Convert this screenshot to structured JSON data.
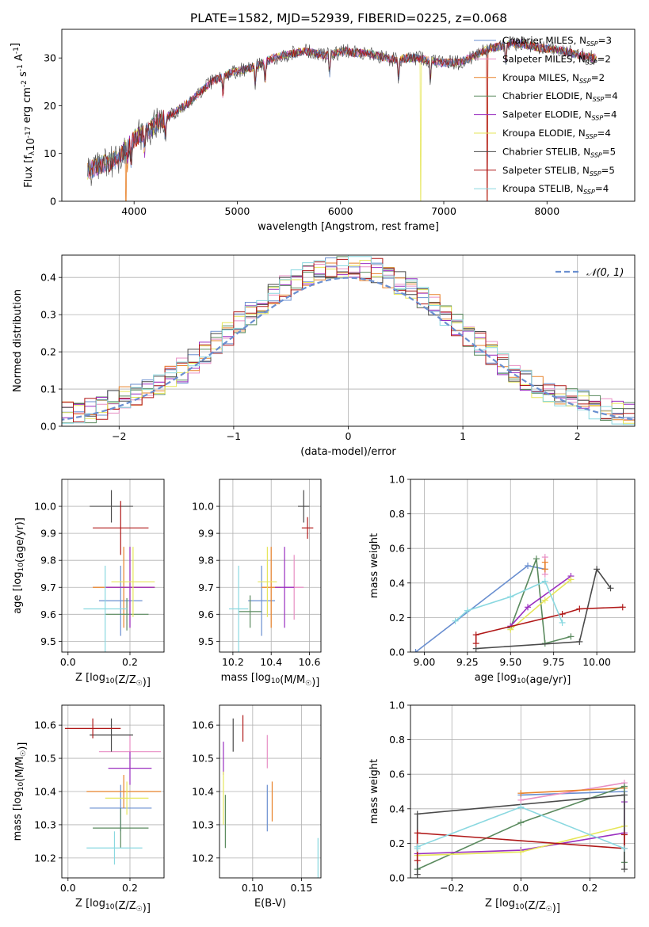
{
  "figure": {
    "title": "PLATE=1582, MJD=52939, FIBERID=0225, z=0.068"
  },
  "colors": {
    "chabrier_miles": "#6a8fd0",
    "salpeter_miles": "#e88fc4",
    "kroupa_miles": "#e8822a",
    "chabrier_elodie": "#5a8a5e",
    "salpeter_elodie": "#9a2fc0",
    "kroupa_elodie": "#e6e65a",
    "chabrier_stelib": "#4a4a4a",
    "salpeter_stelib": "#b01818",
    "kroupa_stelib": "#8ad8e0",
    "normal": "#6a8fd0",
    "grid": "#b0b0b0"
  },
  "chart_data": [
    {
      "id": "spectrum",
      "type": "line",
      "xlabel": "wavelength [Angstrom, rest frame]",
      "ylabel": "Flux [f_λ10^-17 erg cm^-2 s^-1 A^-1]",
      "xlim": [
        3300,
        8850
      ],
      "ylim": [
        0,
        36
      ],
      "xticks": [
        "4000",
        "5000",
        "6000",
        "7000",
        "8000"
      ],
      "xtick_values": [
        4000,
        5000,
        6000,
        7000,
        8000
      ],
      "yticks": [
        "0",
        "10",
        "20",
        "30"
      ],
      "ytick_values": [
        0,
        10,
        20,
        30
      ],
      "grid": false,
      "legend_position": "right",
      "legend": [
        {
          "label": "Chabrier MILES, N",
          "sub": "SSP",
          "n": "=3",
          "color_key": "chabrier_miles"
        },
        {
          "label": "Salpeter MILES, N",
          "sub": "SSP",
          "n": "=2",
          "color_key": "salpeter_miles"
        },
        {
          "label": "Kroupa MILES, N",
          "sub": "SSP",
          "n": "=2",
          "color_key": "kroupa_miles"
        },
        {
          "label": "Chabrier ELODIE, N",
          "sub": "SSP",
          "n": "=4",
          "color_key": "chabrier_elodie"
        },
        {
          "label": "Salpeter ELODIE, N",
          "sub": "SSP",
          "n": "=4",
          "color_key": "salpeter_elodie"
        },
        {
          "label": "Kroupa ELODIE, N",
          "sub": "SSP",
          "n": "=4",
          "color_key": "kroupa_elodie"
        },
        {
          "label": "Chabrier STELIB, N",
          "sub": "SSP",
          "n": "=5",
          "color_key": "chabrier_stelib"
        },
        {
          "label": "Salpeter STELIB, N",
          "sub": "SSP",
          "n": "=5",
          "color_key": "salpeter_stelib"
        },
        {
          "label": "Kroupa STELIB, N",
          "sub": "SSP",
          "n": "=4",
          "color_key": "kroupa_stelib"
        }
      ],
      "continuum": {
        "x": [
          3550,
          3650,
          3750,
          3850,
          3950,
          4050,
          4150,
          4250,
          4350,
          4450,
          4550,
          4650,
          4750,
          4850,
          4950,
          5050,
          5150,
          5250,
          5350,
          5450,
          5550,
          5650,
          5750,
          5850,
          5950,
          6050,
          6150,
          6250,
          6350,
          6450,
          6550,
          6650,
          6750,
          6850,
          6950,
          7050,
          7150,
          7250,
          7350,
          7450,
          7550,
          7650,
          7750,
          7850,
          7950,
          8050,
          8150,
          8250,
          8350,
          8450
        ],
        "y": [
          6,
          7.5,
          8,
          9,
          12,
          14,
          15,
          17,
          18,
          19.5,
          21,
          23,
          25,
          26,
          27,
          27.5,
          28,
          29,
          30,
          30.5,
          31,
          31.5,
          31,
          30.5,
          31,
          31.5,
          31,
          31,
          30.5,
          30,
          29.5,
          30,
          30,
          29.5,
          29,
          29,
          29,
          30,
          31,
          32,
          32.5,
          33,
          33,
          32.5,
          32,
          32,
          31.5,
          31,
          30.5,
          30
        ]
      },
      "absorption_features": [
        3934,
        3969,
        4101,
        4304,
        4861,
        5175,
        5270,
        5894,
        6563,
        6870,
        7600
      ],
      "model_dropouts": [
        {
          "x": 3920,
          "color_key": "kroupa_miles"
        },
        {
          "x": 6780,
          "color_key": "kroupa_elodie"
        },
        {
          "x": 7420,
          "color_key": "salpeter_stelib"
        },
        {
          "x": 7420,
          "color_key": "kroupa_miles"
        }
      ]
    },
    {
      "id": "residuals",
      "type": "histogram",
      "xlabel": "(data-model)/error",
      "ylabel": "Normed distribution",
      "xlim": [
        -2.5,
        2.5
      ],
      "ylim": [
        0,
        0.46
      ],
      "xticks": [
        "−2",
        "−1",
        "0",
        "1",
        "2"
      ],
      "xtick_values": [
        -2,
        -1,
        0,
        1,
        2
      ],
      "yticks": [
        "0.0",
        "0.1",
        "0.2",
        "0.3",
        "0.4"
      ],
      "ytick_values": [
        0,
        0.1,
        0.2,
        0.3,
        0.4
      ],
      "grid": true,
      "legend_position": "top-right",
      "legend_label": "𝒩(0, 1)",
      "bin_width": 0.1,
      "normal_curve": {
        "mean": 0,
        "sigma": 1
      }
    },
    {
      "id": "age_vs_Z",
      "type": "errorbar",
      "xlabel": "Z [log10(Z/Z☉)]",
      "ylabel": "age  [log10(age/yr)]",
      "xlim": [
        -0.02,
        0.31
      ],
      "ylim": [
        9.46,
        10.1
      ],
      "xticks": [
        "0.0",
        "0.2"
      ],
      "xtick_values": [
        0.0,
        0.2
      ],
      "yticks": [
        "9.5",
        "9.6",
        "9.7",
        "9.8",
        "9.9",
        "10.0"
      ],
      "ytick_values": [
        9.5,
        9.6,
        9.7,
        9.8,
        9.9,
        10.0
      ],
      "grid": true,
      "points": [
        {
          "x": 0.17,
          "xerr": 0.07,
          "y": 9.65,
          "yerr": 0.13,
          "color_key": "chabrier_miles"
        },
        {
          "x": 0.2,
          "xerr": 0.07,
          "y": 9.7,
          "yerr": 0.15,
          "color_key": "salpeter_miles"
        },
        {
          "x": 0.18,
          "xerr": 0.1,
          "y": 9.7,
          "yerr": 0.15,
          "color_key": "kroupa_miles"
        },
        {
          "x": 0.19,
          "xerr": 0.07,
          "y": 9.6,
          "yerr": 0.06,
          "color_key": "chabrier_elodie"
        },
        {
          "x": 0.2,
          "xerr": 0.08,
          "y": 9.7,
          "yerr": 0.15,
          "color_key": "salpeter_elodie"
        },
        {
          "x": 0.21,
          "xerr": 0.07,
          "y": 9.72,
          "yerr": 0.13,
          "color_key": "kroupa_elodie"
        },
        {
          "x": 0.14,
          "xerr": 0.07,
          "y": 10.0,
          "yerr": 0.06,
          "color_key": "chabrier_stelib"
        },
        {
          "x": 0.17,
          "xerr": 0.09,
          "y": 9.92,
          "yerr": 0.1,
          "color_key": "salpeter_stelib"
        },
        {
          "x": 0.12,
          "xerr": 0.07,
          "y": 9.62,
          "yerr": 0.16,
          "color_key": "kroupa_stelib"
        }
      ]
    },
    {
      "id": "age_vs_mass",
      "type": "errorbar",
      "xlabel": "mass [log10(M/M☉)]",
      "ylabel": "",
      "xlim": [
        10.13,
        10.66
      ],
      "ylim": [
        9.46,
        10.1
      ],
      "xticks": [
        "10.2",
        "10.4",
        "10.6"
      ],
      "xtick_values": [
        10.2,
        10.4,
        10.6
      ],
      "yticks": [
        "9.5",
        "9.6",
        "9.7",
        "9.8",
        "9.9",
        "10.0"
      ],
      "ytick_values": [
        9.5,
        9.6,
        9.7,
        9.8,
        9.9,
        10.0
      ],
      "grid": true,
      "points": [
        {
          "x": 10.35,
          "xerr": 0.07,
          "y": 9.65,
          "yerr": 0.13,
          "color_key": "chabrier_miles"
        },
        {
          "x": 10.52,
          "xerr": 0.05,
          "y": 9.7,
          "yerr": 0.12,
          "color_key": "salpeter_miles"
        },
        {
          "x": 10.4,
          "xerr": 0.05,
          "y": 9.7,
          "yerr": 0.15,
          "color_key": "kroupa_miles"
        },
        {
          "x": 10.29,
          "xerr": 0.06,
          "y": 9.61,
          "yerr": 0.06,
          "color_key": "chabrier_elodie"
        },
        {
          "x": 10.47,
          "xerr": 0.05,
          "y": 9.7,
          "yerr": 0.15,
          "color_key": "salpeter_elodie"
        },
        {
          "x": 10.38,
          "xerr": 0.05,
          "y": 9.72,
          "yerr": 0.13,
          "color_key": "kroupa_elodie"
        },
        {
          "x": 10.57,
          "xerr": 0.03,
          "y": 10.0,
          "yerr": 0.06,
          "color_key": "chabrier_stelib"
        },
        {
          "x": 10.59,
          "xerr": 0.03,
          "y": 9.92,
          "yerr": 0.04,
          "color_key": "salpeter_stelib"
        },
        {
          "x": 10.23,
          "xerr": 0.05,
          "y": 9.62,
          "yerr": 0.16,
          "color_key": "kroupa_stelib"
        }
      ]
    },
    {
      "id": "weight_vs_age",
      "type": "line",
      "xlabel": "age  [log10(age/yr)]",
      "ylabel": "mass weight",
      "xlim": [
        8.92,
        10.22
      ],
      "ylim": [
        0,
        1
      ],
      "xticks": [
        "9.00",
        "9.25",
        "9.50",
        "9.75",
        "10.00"
      ],
      "xtick_values": [
        9.0,
        9.25,
        9.5,
        9.75,
        10.0
      ],
      "yticks": [
        "0.0",
        "0.2",
        "0.4",
        "0.6",
        "0.8",
        "1.0"
      ],
      "ytick_values": [
        0,
        0.2,
        0.4,
        0.6,
        0.8,
        1.0
      ],
      "grid": true,
      "series": [
        {
          "color_key": "chabrier_miles",
          "x": [
            8.95,
            9.6,
            9.7
          ],
          "y": [
            0.0,
            0.5,
            0.48
          ]
        },
        {
          "color_key": "salpeter_miles",
          "x": [
            9.7,
            9.7
          ],
          "y": [
            0.55,
            0.45
          ]
        },
        {
          "color_key": "kroupa_miles",
          "x": [
            9.7,
            9.7
          ],
          "y": [
            0.52,
            0.48
          ]
        },
        {
          "color_key": "chabrier_elodie",
          "x": [
            9.5,
            9.65,
            9.7,
            9.85
          ],
          "y": [
            0.14,
            0.54,
            0.05,
            0.09
          ]
        },
        {
          "color_key": "salpeter_elodie",
          "x": [
            9.5,
            9.6,
            9.85
          ],
          "y": [
            0.15,
            0.26,
            0.44
          ]
        },
        {
          "color_key": "kroupa_elodie",
          "x": [
            9.5,
            9.7,
            9.85
          ],
          "y": [
            0.13,
            0.3,
            0.42
          ]
        },
        {
          "color_key": "chabrier_stelib",
          "x": [
            9.3,
            9.9,
            10.0,
            10.08
          ],
          "y": [
            0.02,
            0.06,
            0.48,
            0.37
          ]
        },
        {
          "color_key": "salpeter_stelib",
          "x": [
            9.3,
            9.3,
            9.8,
            9.9,
            10.15
          ],
          "y": [
            0.05,
            0.1,
            0.22,
            0.25,
            0.26
          ]
        },
        {
          "color_key": "kroupa_stelib",
          "x": [
            9.18,
            9.25,
            9.5,
            9.7,
            9.8
          ],
          "y": [
            0.18,
            0.24,
            0.32,
            0.41,
            0.17
          ]
        }
      ]
    },
    {
      "id": "mass_vs_Z",
      "type": "errorbar",
      "xlabel": "Z [log10(Z/Z☉)]",
      "ylabel": "mass [log10(M/M☉)]",
      "xlim": [
        -0.02,
        0.31
      ],
      "ylim": [
        10.14,
        10.66
      ],
      "xticks": [
        "0.0",
        "0.2"
      ],
      "xtick_values": [
        0.0,
        0.2
      ],
      "yticks": [
        "10.2",
        "10.3",
        "10.4",
        "10.5",
        "10.6"
      ],
      "ytick_values": [
        10.2,
        10.3,
        10.4,
        10.5,
        10.6
      ],
      "grid": true,
      "points": [
        {
          "x": 0.17,
          "xerr": 0.1,
          "y": 10.35,
          "yerr": 0.07,
          "color_key": "chabrier_miles"
        },
        {
          "x": 0.2,
          "xerr": 0.1,
          "y": 10.52,
          "yerr": 0.05,
          "color_key": "salpeter_miles"
        },
        {
          "x": 0.18,
          "xerr": 0.12,
          "y": 10.4,
          "yerr": 0.05,
          "color_key": "kroupa_miles"
        },
        {
          "x": 0.17,
          "xerr": 0.09,
          "y": 10.29,
          "yerr": 0.06,
          "color_key": "chabrier_elodie"
        },
        {
          "x": 0.2,
          "xerr": 0.07,
          "y": 10.47,
          "yerr": 0.05,
          "color_key": "salpeter_elodie"
        },
        {
          "x": 0.19,
          "xerr": 0.07,
          "y": 10.38,
          "yerr": 0.05,
          "color_key": "kroupa_elodie"
        },
        {
          "x": 0.14,
          "xerr": 0.07,
          "y": 10.57,
          "yerr": 0.05,
          "color_key": "chabrier_stelib"
        },
        {
          "x": 0.08,
          "xerr": 0.09,
          "y": 10.59,
          "yerr": 0.03,
          "color_key": "salpeter_stelib"
        },
        {
          "x": 0.15,
          "xerr": 0.09,
          "y": 10.23,
          "yerr": 0.05,
          "color_key": "kroupa_stelib"
        }
      ]
    },
    {
      "id": "mass_vs_ebv",
      "type": "errorbar",
      "xlabel": "E(B-V)",
      "ylabel": "",
      "xlim": [
        0.066,
        0.17
      ],
      "ylim": [
        10.14,
        10.66
      ],
      "xticks": [
        "0.10",
        "0.15"
      ],
      "xtick_values": [
        0.1,
        0.15
      ],
      "yticks": [
        "10.2",
        "10.3",
        "10.4",
        "10.5",
        "10.6"
      ],
      "ytick_values": [
        10.2,
        10.3,
        10.4,
        10.5,
        10.6
      ],
      "grid": true,
      "points": [
        {
          "x": 0.115,
          "xerr": 0,
          "y": 10.35,
          "yerr": 0.07,
          "color_key": "chabrier_miles"
        },
        {
          "x": 0.115,
          "xerr": 0,
          "y": 10.52,
          "yerr": 0.05,
          "color_key": "salpeter_miles"
        },
        {
          "x": 0.12,
          "xerr": 0,
          "y": 10.37,
          "yerr": 0.06,
          "color_key": "kroupa_miles"
        },
        {
          "x": 0.072,
          "xerr": 0,
          "y": 10.31,
          "yerr": 0.08,
          "color_key": "chabrier_elodie"
        },
        {
          "x": 0.07,
          "xerr": 0,
          "y": 10.5,
          "yerr": 0.05,
          "color_key": "salpeter_elodie"
        },
        {
          "x": 0.07,
          "xerr": 0,
          "y": 10.38,
          "yerr": 0.08,
          "color_key": "kroupa_elodie"
        },
        {
          "x": 0.08,
          "xerr": 0,
          "y": 10.57,
          "yerr": 0.05,
          "color_key": "chabrier_stelib"
        },
        {
          "x": 0.09,
          "xerr": 0,
          "y": 10.59,
          "yerr": 0.04,
          "color_key": "salpeter_stelib"
        },
        {
          "x": 0.167,
          "xerr": 0,
          "y": 10.2,
          "yerr": 0.06,
          "color_key": "kroupa_stelib"
        }
      ]
    },
    {
      "id": "weight_vs_Z",
      "type": "line",
      "xlabel": "Z [log10(Z/Z☉)]",
      "ylabel": "mass weight",
      "xlim": [
        -0.32,
        0.33
      ],
      "ylim": [
        0,
        1
      ],
      "xticks": [
        "−0.2",
        "0.0",
        "0.2"
      ],
      "xtick_values": [
        -0.2,
        0.0,
        0.2
      ],
      "yticks": [
        "0.0",
        "0.2",
        "0.4",
        "0.6",
        "0.8",
        "1.0"
      ],
      "ytick_values": [
        0,
        0.2,
        0.4,
        0.6,
        0.8,
        1.0
      ],
      "grid": true,
      "series": [
        {
          "color_key": "chabrier_miles",
          "x": [
            0.0,
            0.3
          ],
          "y": [
            0.48,
            0.5
          ]
        },
        {
          "color_key": "salpeter_miles",
          "x": [
            0.0,
            0.3
          ],
          "y": [
            0.45,
            0.55
          ]
        },
        {
          "color_key": "kroupa_miles",
          "x": [
            0.0,
            0.3
          ],
          "y": [
            0.49,
            0.52
          ]
        },
        {
          "color_key": "chabrier_elodie",
          "x": [
            -0.3,
            0.0,
            0.3,
            0.3
          ],
          "y": [
            0.05,
            0.32,
            0.53,
            0.09
          ]
        },
        {
          "color_key": "salpeter_elodie",
          "x": [
            -0.3,
            0.0,
            0.3,
            0.3
          ],
          "y": [
            0.14,
            0.16,
            0.26,
            0.44
          ]
        },
        {
          "color_key": "kroupa_elodie",
          "x": [
            -0.3,
            0.0,
            0.3
          ],
          "y": [
            0.13,
            0.15,
            0.3
          ]
        },
        {
          "color_key": "chabrier_stelib",
          "x": [
            -0.3,
            -0.3,
            0.3,
            0.3
          ],
          "y": [
            0.02,
            0.37,
            0.48,
            0.05
          ]
        },
        {
          "color_key": "salpeter_stelib",
          "x": [
            -0.3,
            -0.3,
            0.3,
            0.3
          ],
          "y": [
            0.1,
            0.26,
            0.17,
            0.25
          ]
        },
        {
          "color_key": "kroupa_stelib",
          "x": [
            -0.3,
            -0.3,
            0.0,
            0.3
          ],
          "y": [
            0.17,
            0.18,
            0.41,
            0.17
          ]
        }
      ]
    }
  ]
}
